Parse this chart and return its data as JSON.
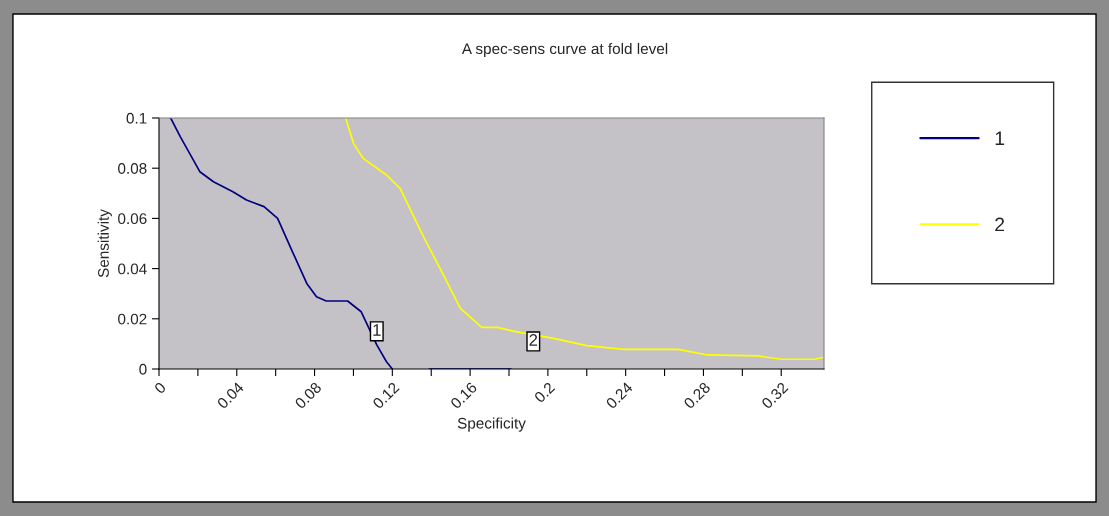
{
  "chart_data": {
    "type": "line",
    "title": "A spec-sens curve at fold level",
    "xlabel": "Specificity",
    "ylabel": "Sensitivity",
    "xlim": [
      0,
      0.342
    ],
    "ylim": [
      0,
      0.1
    ],
    "xticks": [
      0,
      {
        "value": 0.02,
        "label": null
      },
      0.04,
      {
        "value": 0.06,
        "label": null
      },
      0.08,
      {
        "value": 0.1,
        "label": null
      },
      0.12,
      {
        "value": 0.14,
        "label": null
      },
      0.16,
      {
        "value": 0.18,
        "label": null
      },
      0.2,
      {
        "value": 0.22,
        "label": null
      },
      0.24,
      {
        "value": 0.26,
        "label": null
      },
      0.28,
      {
        "value": 0.3,
        "label": null
      },
      0.32
    ],
    "yticks": [
      0,
      0.02,
      0.04,
      0.06,
      0.08,
      0.1
    ],
    "grid": false,
    "legend": "right",
    "marker": "none",
    "line_style": "solid",
    "series": [
      {
        "name": "1",
        "color": "#000080",
        "x": [
          0.006,
          0.011,
          0.021,
          0.028,
          0.038,
          0.045,
          0.054,
          0.061,
          0.069,
          0.076,
          0.081,
          0.086,
          0.097,
          0.104,
          0.112,
          0.117,
          0.12,
          null,
          0.139,
          0.181
        ],
        "values": [
          0.1,
          0.0925,
          0.0786,
          0.0746,
          0.0706,
          0.0673,
          0.0647,
          0.06,
          0.0461,
          0.0341,
          0.0288,
          0.0271,
          0.0271,
          0.0228,
          0.0096,
          0.0029,
          0,
          null,
          0,
          0
        ]
      },
      {
        "name": "2",
        "color": "#ffff00",
        "x": [
          0.096,
          0.1,
          0.105,
          0.117,
          0.124,
          0.136,
          0.145,
          0.155,
          0.166,
          0.174,
          0.182,
          0.203,
          0.22,
          0.239,
          0.267,
          0.282,
          0.308,
          0.32,
          0.337,
          0.342
        ],
        "values": [
          0.1,
          0.0899,
          0.0839,
          0.0773,
          0.072,
          0.0527,
          0.0394,
          0.0242,
          0.0166,
          0.0166,
          0.0151,
          0.0122,
          0.0093,
          0.0078,
          0.0078,
          0.0056,
          0.0052,
          0.0039,
          0.0039,
          0.0047
        ]
      }
    ],
    "annotations": [
      {
        "text": "1",
        "x": 0.112,
        "y": 0.015
      },
      {
        "text": "2",
        "x": 0.1925,
        "y": 0.011
      }
    ]
  }
}
